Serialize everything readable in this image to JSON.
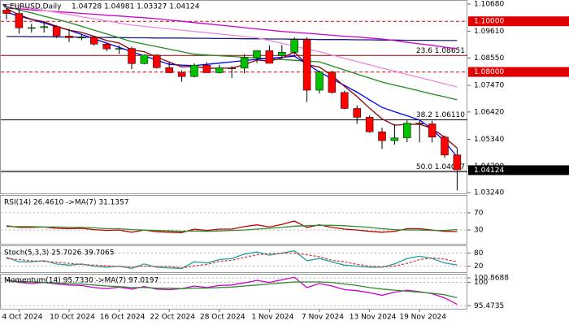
{
  "chart_data": [
    {
      "type": "candlestick",
      "title": "EURUSD,Daily",
      "subtitle": "1.04728 1.04981 1.03327 1.04124",
      "categories": [
        null,
        "4 Oct 2024",
        null,
        null,
        null,
        "10 Oct 2024",
        null,
        null,
        null,
        "16 Oct 2024",
        null,
        null,
        null,
        "22 Oct 2024",
        null,
        null,
        null,
        "28 Oct 2024",
        null,
        null,
        null,
        "1 Nov 2024",
        null,
        null,
        null,
        "7 Nov 2024",
        null,
        null,
        null,
        "13 Nov 2024",
        null,
        null,
        null,
        "19 Nov 2024",
        null,
        null,
        null
      ],
      "open": [
        1.1044,
        1.1031,
        1.0974,
        1.0975,
        1.0979,
        1.0942,
        1.0935,
        1.0937,
        1.091,
        1.0891,
        1.0893,
        1.0833,
        1.0867,
        1.0817,
        1.0797,
        1.0782,
        1.0827,
        1.0797,
        1.0816,
        1.0815,
        1.0856,
        1.0884,
        1.0865,
        1.0878,
        1.0928,
        1.0728,
        1.08,
        1.0719,
        1.0656,
        1.0621,
        1.0564,
        1.0529,
        1.054,
        1.0598,
        1.0595,
        1.0543,
        1.04728
      ],
      "high": [
        1.1059,
        1.105,
        1.099,
        1.0999,
        1.0984,
        1.097,
        1.095,
        1.094,
        1.0915,
        1.0905,
        1.09,
        1.0869,
        1.087,
        1.0837,
        1.0806,
        1.0834,
        1.0838,
        1.0828,
        1.0824,
        1.087,
        1.0885,
        1.0905,
        1.0906,
        1.0937,
        1.0937,
        1.0805,
        1.0804,
        1.0726,
        1.0668,
        1.0629,
        1.058,
        1.0594,
        1.0609,
        1.061,
        1.0608,
        1.0549,
        1.04981
      ],
      "low": [
        1.1007,
        1.0951,
        1.0955,
        1.0955,
        1.0934,
        1.0918,
        1.0925,
        1.0904,
        1.0882,
        1.0871,
        1.0811,
        1.083,
        1.0813,
        1.0797,
        1.0761,
        1.0778,
        1.0802,
        1.0794,
        1.0776,
        1.0795,
        1.0836,
        1.0834,
        1.086,
        1.0867,
        1.0682,
        1.0715,
        1.0714,
        1.0653,
        1.0595,
        1.056,
        1.0496,
        1.0513,
        1.0523,
        1.0522,
        1.0522,
        1.0462,
        1.03327
      ],
      "close": [
        1.1031,
        1.0974,
        1.0975,
        1.0979,
        1.0942,
        1.0935,
        1.0937,
        1.091,
        1.0891,
        1.0893,
        1.0833,
        1.0867,
        1.0817,
        1.0797,
        1.0782,
        1.0827,
        1.0797,
        1.0816,
        1.0815,
        1.0856,
        1.0884,
        1.0834,
        1.0878,
        1.0928,
        1.0728,
        1.08,
        1.0719,
        1.0656,
        1.0621,
        1.0564,
        1.0529,
        1.054,
        1.0598,
        1.0595,
        1.0543,
        1.0472,
        1.04124
      ],
      "up_color": "#00c000",
      "down_color": "#ff0000",
      "series": [
        {
          "color": "#1a1a80",
          "values": [
            1.094,
            1.094,
            1.0939,
            1.0939,
            1.0938,
            1.0938,
            1.0937,
            1.0937,
            1.0936,
            1.0936,
            1.0935,
            1.0935,
            1.0934,
            1.0934,
            1.0934,
            1.0933,
            1.0933,
            1.0932,
            1.0932,
            1.0931,
            1.0931,
            1.093,
            1.093,
            1.0929,
            1.0929,
            1.0928,
            1.0928,
            1.0928,
            1.0927,
            1.0927,
            1.0926,
            1.0926,
            1.0925,
            1.0925,
            1.0925,
            1.0924,
            1.0924
          ]
        },
        {
          "color": "#cc00cc",
          "values": [
            1.1052,
            1.1049,
            1.1045,
            1.1042,
            1.1038,
            1.1035,
            1.1031,
            1.1028,
            1.1024,
            1.1021,
            1.1017,
            1.1014,
            1.101,
            1.1005,
            1.1,
            1.0995,
            1.099,
            1.0985,
            1.098,
            1.0975,
            1.097,
            1.0965,
            1.096,
            1.0956,
            1.0953,
            1.0949,
            1.0945,
            1.0941,
            1.0938,
            1.0934,
            1.093,
            1.0924,
            1.0917,
            1.0911,
            1.0905,
            1.0898,
            1.0892
          ]
        },
        {
          "color": "#ee88dd",
          "values": [
            1.1068,
            1.106,
            1.1051,
            1.1043,
            1.1035,
            1.1027,
            1.1018,
            1.101,
            1.1002,
            1.0993,
            1.0985,
            1.098,
            1.0975,
            1.097,
            1.0965,
            1.096,
            1.0955,
            1.095,
            1.0945,
            1.094,
            1.0935,
            1.0924,
            1.0913,
            1.0902,
            1.0891,
            1.088,
            1.0867,
            1.0854,
            1.0841,
            1.0828,
            1.0815,
            1.0803,
            1.079,
            1.0778,
            1.0766,
            1.0753,
            1.0741
          ]
        },
        {
          "color": "#1e8c1e",
          "values": [
            1.1058,
            1.1045,
            1.1033,
            1.102,
            1.1008,
            1.0995,
            1.098,
            1.0965,
            1.095,
            1.0935,
            1.092,
            1.091,
            1.09,
            1.089,
            1.088,
            1.087,
            1.0867,
            1.0864,
            1.0861,
            1.0858,
            1.0855,
            1.0852,
            1.0849,
            1.0846,
            1.0843,
            1.084,
            1.0824,
            1.0808,
            1.0792,
            1.0776,
            1.076,
            1.0748,
            1.0737,
            1.0725,
            1.0713,
            1.0702,
            1.069
          ]
        },
        {
          "color": "#0000ff",
          "values": [
            1.1035,
            1.1021,
            1.1007,
            1.0993,
            1.0979,
            1.0965,
            1.0948,
            1.0931,
            1.0914,
            1.0897,
            1.088,
            1.0863,
            1.0847,
            1.083,
            1.0827,
            1.0825,
            1.083,
            1.0835,
            1.084,
            1.0845,
            1.085,
            1.0854,
            1.0858,
            1.0862,
            1.0831,
            1.08,
            1.0773,
            1.0747,
            1.072,
            1.069,
            1.066,
            1.0643,
            1.0627,
            1.061,
            1.0575,
            1.0525,
            1.0465
          ]
        },
        {
          "color": "#8b0000",
          "values": [
            1.105,
            1.1025,
            1.1008,
            1.0998,
            1.098,
            1.0965,
            1.0956,
            1.0941,
            1.0924,
            1.0914,
            1.0887,
            1.088,
            1.0859,
            1.0839,
            1.082,
            1.0822,
            1.0814,
            1.0815,
            1.0815,
            1.0829,
            1.0847,
            1.0843,
            1.0855,
            1.0879,
            1.0829,
            1.0819,
            1.0786,
            1.0743,
            1.0703,
            1.0657,
            1.0615,
            1.059,
            1.0593,
            1.0594,
            1.0577,
            1.0542,
            1.0499
          ]
        }
      ],
      "levels": [
        {
          "value": 1.1,
          "label": "1.10000",
          "color": "#e00000",
          "style": "dashed",
          "badge": true
        },
        {
          "value": 1.08,
          "label": "1.08000",
          "color": "#e00000",
          "style": "dashed",
          "badge": true
        },
        {
          "value": 1.08651,
          "label": "23.6 1.08651",
          "color": "#8b0000",
          "style": "solid",
          "badge": false
        },
        {
          "value": 1.0611,
          "label": "38.2 1.06110",
          "color": "#000000",
          "style": "solid",
          "badge": false
        },
        {
          "value": 1.04057,
          "label": "50.0 1.04057",
          "color": "#000000",
          "style": "solid",
          "badge": false
        }
      ],
      "last": {
        "value": 1.04124,
        "label": "1.04124",
        "color": "#000000"
      },
      "ylim": [
        1.0324,
        1.1068
      ],
      "yticks": [
        {
          "value": 1.1068,
          "label": "1.10680"
        },
        {
          "value": 1.0961,
          "label": "1.09610"
        },
        {
          "value": 1.0855,
          "label": "1.08550"
        },
        {
          "value": 1.0747,
          "label": "1.07470"
        },
        {
          "value": 1.0642,
          "label": "1.06420"
        },
        {
          "value": 1.0534,
          "label": "1.05340"
        },
        {
          "value": 1.0429,
          "label": "1.04290"
        },
        {
          "value": 1.0324,
          "label": "1.03240"
        }
      ],
      "grid": false
    },
    {
      "type": "line",
      "title": "RSI(14) 26.4610 ->MA(7) 31.1357",
      "ylim": [
        0,
        100
      ],
      "yticks": [
        70,
        30
      ],
      "grid": true,
      "series": [
        {
          "color": "#c00000",
          "values": [
            40,
            36,
            36,
            37,
            34,
            33,
            34,
            31,
            29,
            30,
            25,
            30,
            26,
            25,
            24,
            32,
            29,
            32,
            32,
            38,
            42,
            37,
            43,
            51,
            36,
            42,
            36,
            32,
            30,
            27,
            25,
            27,
            33,
            33,
            30,
            27,
            26.461
          ]
        },
        {
          "color": "#2e8b2e",
          "values": [
            38,
            38,
            38,
            37,
            37,
            36,
            36,
            35,
            33,
            33,
            31,
            30,
            29,
            28,
            27,
            28,
            27,
            28,
            29,
            30,
            32,
            34,
            36,
            39,
            40,
            41,
            41,
            40,
            38,
            36,
            33,
            31,
            30,
            30,
            29,
            29,
            31.1357
          ]
        }
      ]
    },
    {
      "type": "line",
      "title": "Stoch(5,3,3) 25.7026 39.7065",
      "ylim": [
        0,
        100
      ],
      "yticks": [
        80,
        20
      ],
      "grid": true,
      "series": [
        {
          "color": "#20a0a0",
          "values": [
            60,
            40,
            40,
            45,
            30,
            25,
            30,
            20,
            15,
            20,
            10,
            30,
            15,
            12,
            10,
            40,
            35,
            50,
            55,
            75,
            85,
            70,
            80,
            90,
            45,
            55,
            40,
            25,
            20,
            15,
            15,
            30,
            55,
            65,
            55,
            35,
            25.7026
          ]
        },
        {
          "color": "#d04040",
          "dash": true,
          "values": [
            55,
            50,
            45,
            42,
            38,
            33,
            28,
            25,
            22,
            18,
            15,
            20,
            18,
            19,
            12,
            21,
            28,
            42,
            47,
            60,
            72,
            77,
            78,
            80,
            72,
            63,
            47,
            40,
            28,
            20,
            17,
            20,
            33,
            50,
            58,
            52,
            39.7065
          ]
        }
      ]
    },
    {
      "type": "line",
      "title": "Momentum(14) 95.7330 ->MA(7) 97.0197",
      "ylim": [
        95.2,
        101.2
      ],
      "yticks": [
        100.8688,
        100,
        95.4735
      ],
      "grid": true,
      "series": [
        {
          "color": "#cc00cc",
          "values": [
            100.5,
            100,
            99.8,
            100,
            99.7,
            99.5,
            99.4,
            99,
            98.8,
            99.1,
            98.7,
            99.2,
            98.7,
            98.6,
            98.8,
            99.3,
            99,
            99.4,
            99.5,
            99.9,
            100.4,
            100,
            100.5,
            101,
            99,
            99.8,
            99.3,
            98.6,
            98.4,
            98,
            97.5,
            98.1,
            98.5,
            98.2,
            97.8,
            97,
            95.733
          ]
        },
        {
          "color": "#2e8b2e",
          "values": [
            100.3,
            100.2,
            100.1,
            100,
            99.9,
            99.8,
            99.7,
            99.5,
            99.3,
            99.2,
            99,
            99,
            98.9,
            98.9,
            98.8,
            98.9,
            98.9,
            99,
            99.1,
            99.3,
            99.5,
            99.7,
            99.9,
            100.1,
            100.1,
            100.1,
            100,
            99.7,
            99.4,
            99,
            98.7,
            98.5,
            98.3,
            98.1,
            97.9,
            97.6,
            97.0197
          ]
        }
      ]
    }
  ]
}
